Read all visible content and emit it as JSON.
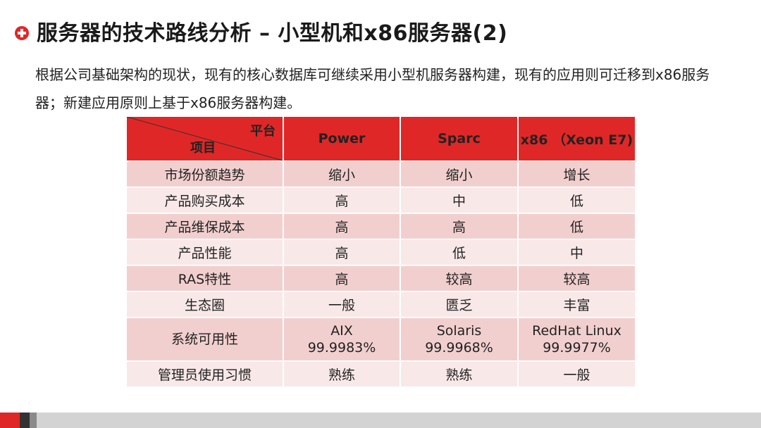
{
  "title": "服务器的技术路线分析 – 小型机和x86服务器(2)",
  "intro": "根据公司基础架构的现状，现有的核心数据库可继续采用小型机服务器构建，现有的应用则可迁移到x86服务器；新建应用原则上基于x86服务器构建。",
  "table": {
    "corner_platform": "平台",
    "corner_item": "项目",
    "columns": [
      "Power",
      "Sparc",
      "x86  （Xeon E7)"
    ],
    "rows": [
      {
        "item": "市场份额趋势",
        "values": [
          "缩小",
          "缩小",
          "增长"
        ]
      },
      {
        "item": "产品购买成本",
        "values": [
          "高",
          "中",
          "低"
        ]
      },
      {
        "item": "产品维保成本",
        "values": [
          "高",
          "高",
          "低"
        ]
      },
      {
        "item": "产品性能",
        "values": [
          "高",
          "低",
          "中"
        ]
      },
      {
        "item": "RAS特性",
        "values": [
          "高",
          "较高",
          "较高"
        ]
      },
      {
        "item": "生态圈",
        "values": [
          "一般",
          "匮乏",
          "丰富"
        ]
      },
      {
        "item": "系统可用性",
        "values": [
          {
            "name": "AIX",
            "value": "99.9983%"
          },
          {
            "name": "Solaris",
            "value": "99.9968%"
          },
          {
            "name": "RedHat Linux",
            "value": "99.9977%"
          }
        ]
      },
      {
        "item": "管理员使用习惯",
        "values": [
          "熟练",
          "熟练",
          "一般"
        ]
      }
    ]
  },
  "colors": {
    "accent": "#e02727",
    "row_odd": "#f2cfcf",
    "row_even": "#f9e8e8",
    "footer_bar": "#d3d3d3"
  },
  "icons": {
    "title_bullet": "plus-circle-icon"
  }
}
